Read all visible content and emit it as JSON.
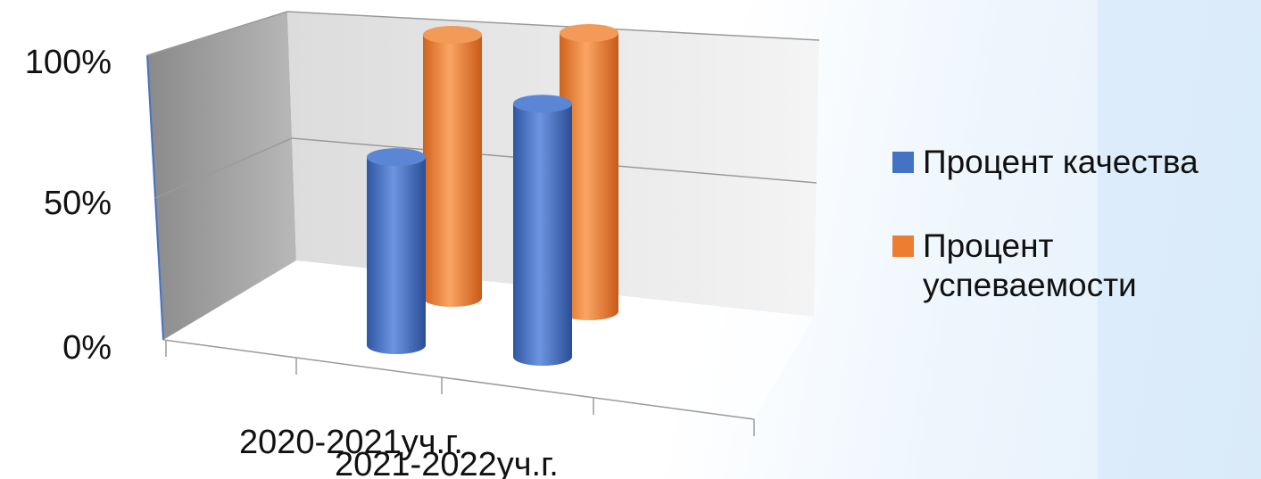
{
  "chart_data": {
    "type": "bar",
    "style": "3d-cylinder",
    "categories": [
      "2020-2021уч.г.",
      "2021-2022уч.г."
    ],
    "series": [
      {
        "name": "Процент качества",
        "values": [
          71,
          86
        ],
        "color": "#4472c4"
      },
      {
        "name": "Процент успеваемости",
        "values": [
          100,
          100
        ],
        "color": "#ed7d31"
      }
    ],
    "yticks": [
      "0%",
      "50%",
      "100%"
    ],
    "ylim": [
      0,
      100
    ],
    "grid": true,
    "legend_position": "right"
  }
}
